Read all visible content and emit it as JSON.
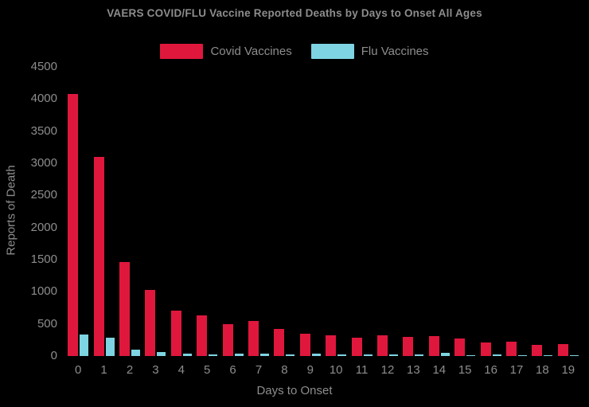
{
  "title": "VAERS COVID/FLU Vaccine Reported Deaths by Days to Onset All Ages",
  "colors": {
    "background": "#000000",
    "text": "#8d8d8d",
    "covid": "#e0173d",
    "flu": "#7ed4e2"
  },
  "chart_data": {
    "type": "bar",
    "title": "VAERS COVID/FLU Vaccine Reported Deaths by Days to Onset All Ages",
    "xlabel": "Days to Onset",
    "ylabel": "Reports of Death",
    "categories": [
      "0",
      "1",
      "2",
      "3",
      "4",
      "5",
      "6",
      "7",
      "8",
      "9",
      "10",
      "11",
      "12",
      "13",
      "14",
      "15",
      "16",
      "17",
      "18",
      "19"
    ],
    "series": [
      {
        "name": "Covid Vaccines",
        "color": "#e0173d",
        "values": [
          4080,
          3100,
          1460,
          1030,
          710,
          630,
          500,
          550,
          420,
          350,
          320,
          285,
          320,
          300,
          310,
          270,
          210,
          220,
          175,
          185
        ]
      },
      {
        "name": "Flu Vaccines",
        "color": "#7ed4e2",
        "values": [
          330,
          280,
          95,
          65,
          40,
          25,
          35,
          35,
          30,
          35,
          20,
          20,
          20,
          30,
          45,
          10,
          30,
          10,
          5,
          8
        ]
      }
    ],
    "ylim": [
      0,
      4500
    ],
    "yticks": [
      0,
      500,
      1000,
      1500,
      2000,
      2500,
      3000,
      3500,
      4000,
      4500
    ],
    "grid": false,
    "legend_position": "top",
    "background": "#000000"
  }
}
